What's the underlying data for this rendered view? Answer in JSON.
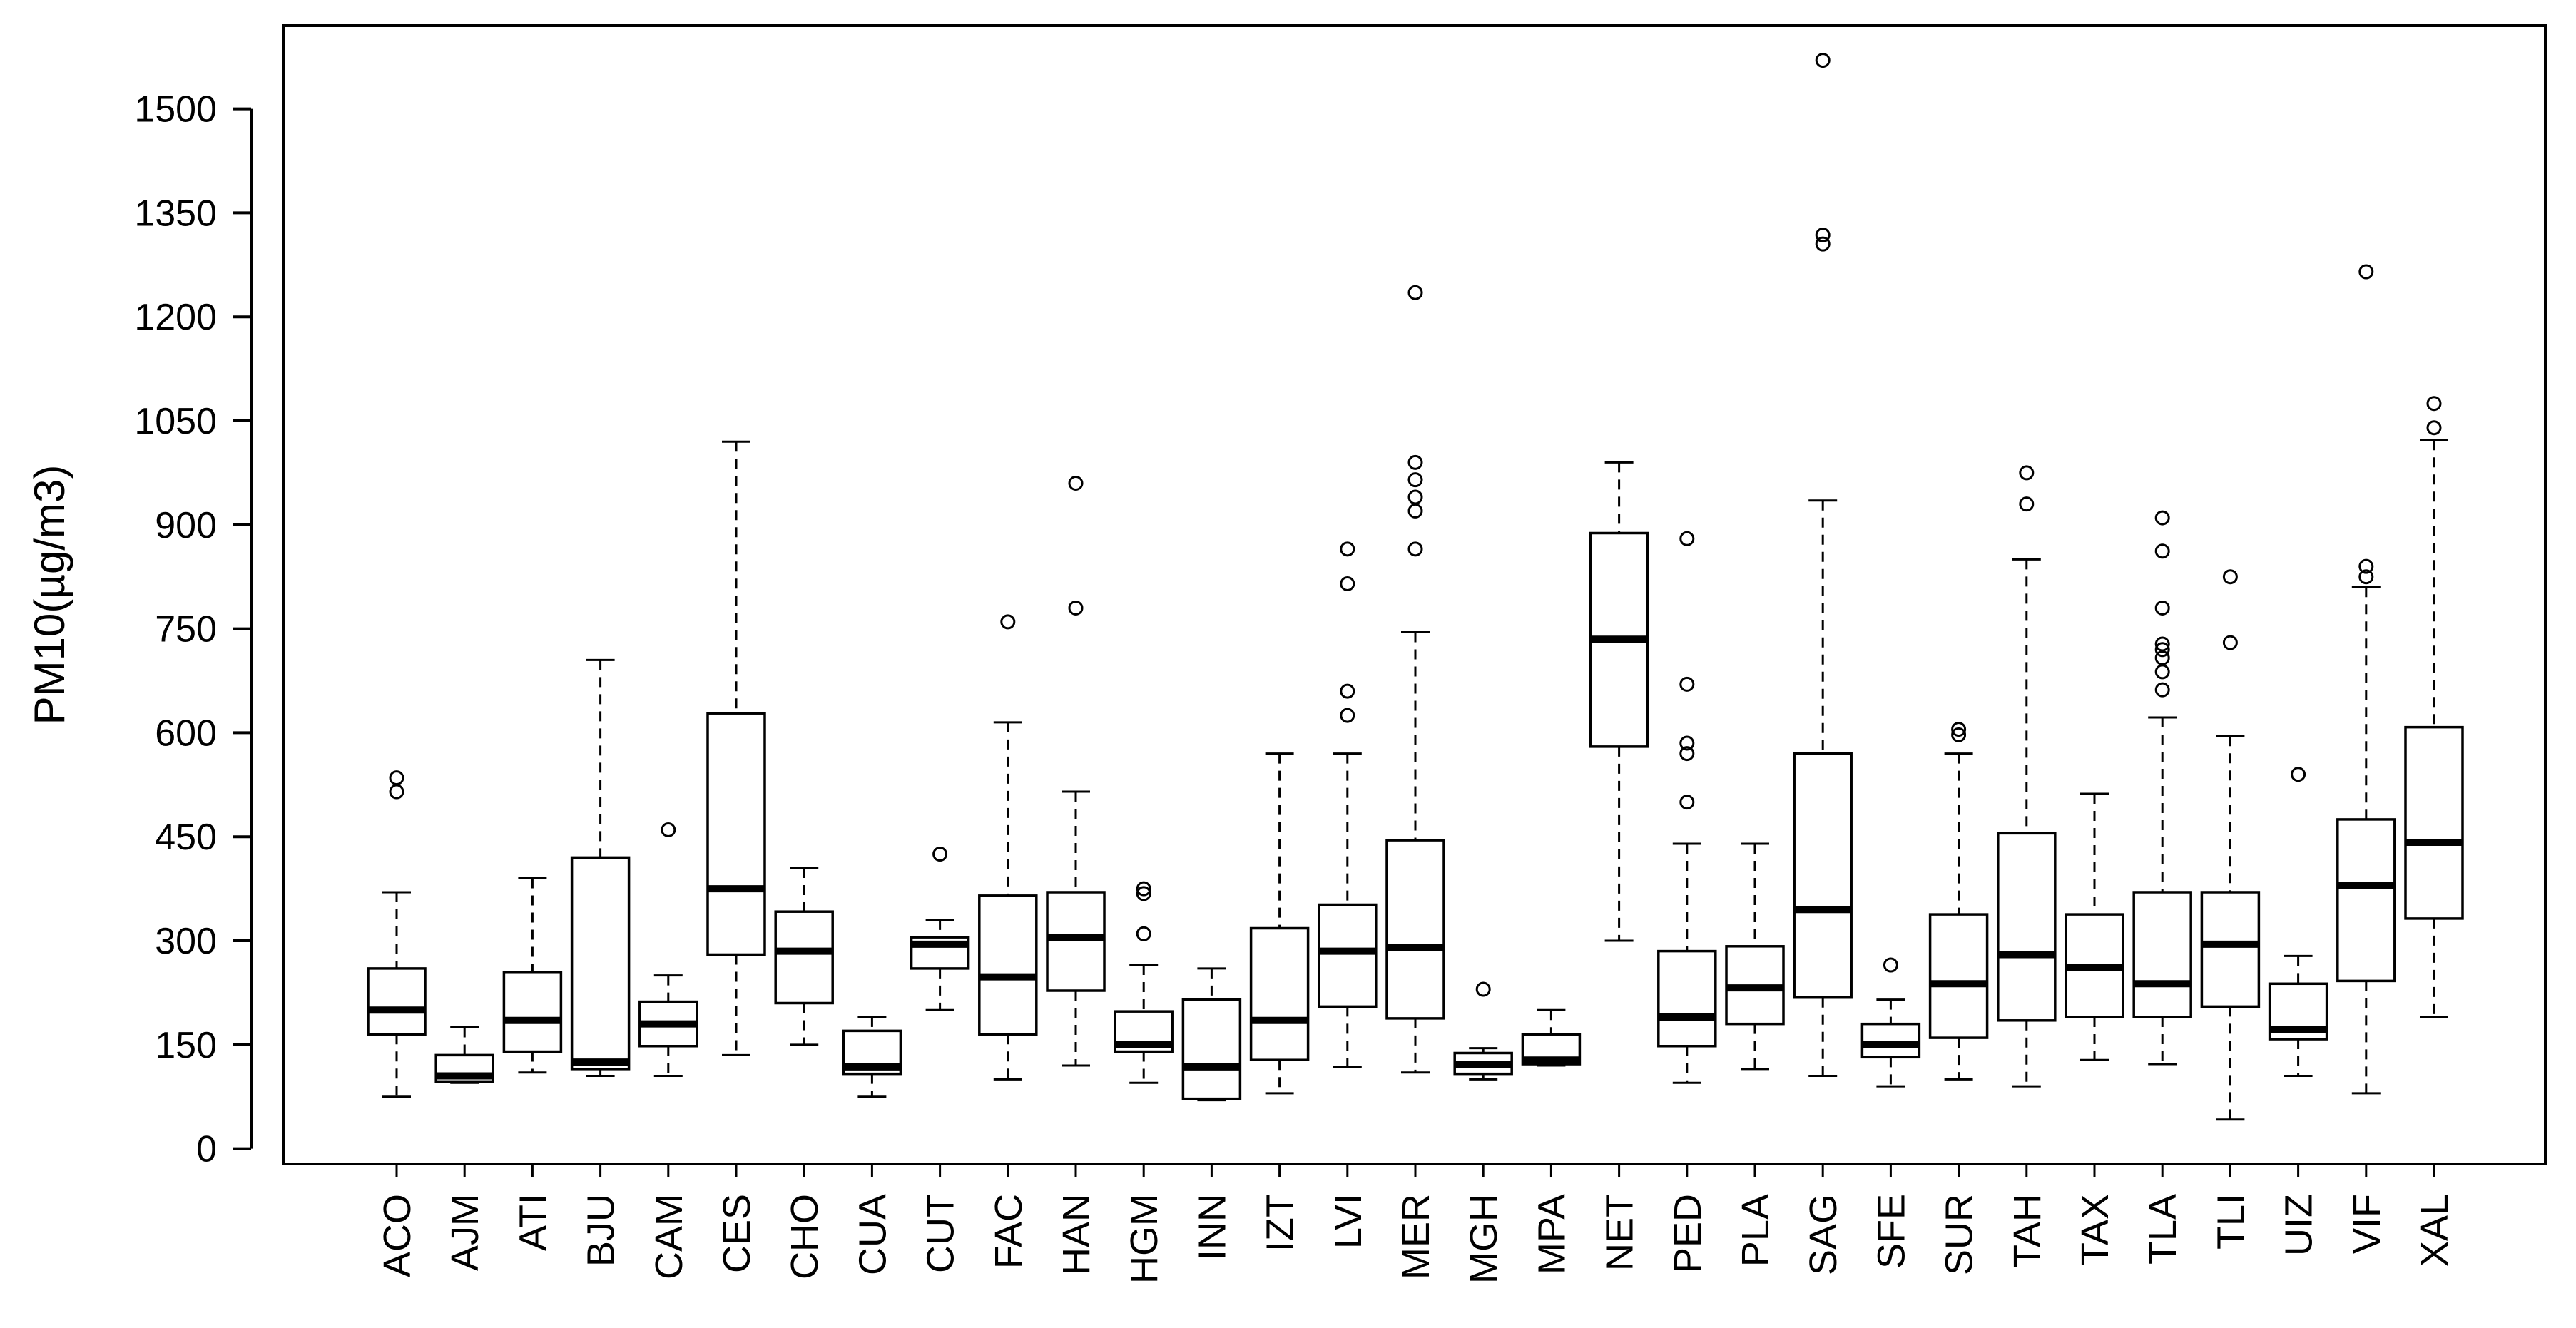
{
  "chart_data": {
    "type": "boxplot",
    "title": "",
    "xlabel": "",
    "ylabel": "PM10(µg/m3)",
    "ylim": [
      -22,
      1620
    ],
    "yticks": [
      0,
      150,
      300,
      450,
      600,
      750,
      900,
      1050,
      1200,
      1350,
      1500
    ],
    "ytick_labels": [
      "0",
      "150",
      "300",
      "450",
      "600",
      "750",
      "900",
      "1050",
      "1200",
      "1350",
      "1500"
    ],
    "grid": false,
    "categories": [
      "ACO",
      "AJM",
      "ATI",
      "BJU",
      "CAM",
      "CES",
      "CHO",
      "CUA",
      "CUT",
      "FAC",
      "HAN",
      "HGM",
      "INN",
      "IZT",
      "LVI",
      "MER",
      "MGH",
      "MPA",
      "NET",
      "PED",
      "PLA",
      "SAG",
      "SFE",
      "SUR",
      "TAH",
      "TAX",
      "TLA",
      "TLI",
      "UIZ",
      "VIF",
      "XAL"
    ],
    "boxes": [
      {
        "name": "ACO",
        "whisker_low": 75,
        "q1": 165,
        "median": 200,
        "q3": 260,
        "whisker_high": 370,
        "outliers": [
          515,
          535
        ]
      },
      {
        "name": "AJM",
        "whisker_low": 95,
        "q1": 97,
        "median": 105,
        "q3": 135,
        "whisker_high": 175,
        "outliers": []
      },
      {
        "name": "ATI",
        "whisker_low": 110,
        "q1": 140,
        "median": 185,
        "q3": 255,
        "whisker_high": 390,
        "outliers": []
      },
      {
        "name": "BJU",
        "whisker_low": 105,
        "q1": 115,
        "median": 125,
        "q3": 420,
        "whisker_high": 705,
        "outliers": []
      },
      {
        "name": "CAM",
        "whisker_low": 105,
        "q1": 148,
        "median": 180,
        "q3": 212,
        "whisker_high": 250,
        "outliers": [
          460
        ]
      },
      {
        "name": "CES",
        "whisker_low": 135,
        "q1": 280,
        "median": 375,
        "q3": 628,
        "whisker_high": 1020,
        "outliers": []
      },
      {
        "name": "CHO",
        "whisker_low": 150,
        "q1": 210,
        "median": 285,
        "q3": 342,
        "whisker_high": 405,
        "outliers": []
      },
      {
        "name": "CUA",
        "whisker_low": 75,
        "q1": 108,
        "median": 118,
        "q3": 170,
        "whisker_high": 190,
        "outliers": []
      },
      {
        "name": "CUT",
        "whisker_low": 200,
        "q1": 260,
        "median": 295,
        "q3": 305,
        "whisker_high": 330,
        "outliers": [
          425
        ]
      },
      {
        "name": "FAC",
        "whisker_low": 100,
        "q1": 165,
        "median": 248,
        "q3": 365,
        "whisker_high": 615,
        "outliers": [
          760
        ]
      },
      {
        "name": "HAN",
        "whisker_low": 120,
        "q1": 228,
        "median": 305,
        "q3": 370,
        "whisker_high": 515,
        "outliers": [
          780,
          960
        ]
      },
      {
        "name": "HGM",
        "whisker_low": 95,
        "q1": 140,
        "median": 150,
        "q3": 198,
        "whisker_high": 265,
        "outliers": [
          310,
          368,
          375
        ]
      },
      {
        "name": "INN",
        "whisker_low": 70,
        "q1": 72,
        "median": 118,
        "q3": 215,
        "whisker_high": 260,
        "outliers": []
      },
      {
        "name": "IZT",
        "whisker_low": 80,
        "q1": 128,
        "median": 185,
        "q3": 318,
        "whisker_high": 570,
        "outliers": []
      },
      {
        "name": "LVI",
        "whisker_low": 118,
        "q1": 205,
        "median": 285,
        "q3": 352,
        "whisker_high": 570,
        "outliers": [
          625,
          660,
          815,
          865
        ]
      },
      {
        "name": "MER",
        "whisker_low": 110,
        "q1": 188,
        "median": 290,
        "q3": 445,
        "whisker_high": 745,
        "outliers": [
          865,
          920,
          940,
          965,
          990,
          1235
        ]
      },
      {
        "name": "MGH",
        "whisker_low": 100,
        "q1": 108,
        "median": 122,
        "q3": 138,
        "whisker_high": 145,
        "outliers": [
          230
        ]
      },
      {
        "name": "MPA",
        "whisker_low": 120,
        "q1": 122,
        "median": 128,
        "q3": 165,
        "whisker_high": 200,
        "outliers": []
      },
      {
        "name": "NET",
        "whisker_low": 300,
        "q1": 580,
        "median": 735,
        "q3": 888,
        "whisker_high": 990,
        "outliers": []
      },
      {
        "name": "PED",
        "whisker_low": 95,
        "q1": 148,
        "median": 190,
        "q3": 285,
        "whisker_high": 440,
        "outliers": [
          500,
          570,
          585,
          670,
          880
        ]
      },
      {
        "name": "PLA",
        "whisker_low": 115,
        "q1": 180,
        "median": 232,
        "q3": 292,
        "whisker_high": 440,
        "outliers": []
      },
      {
        "name": "SAG",
        "whisker_low": 105,
        "q1": 218,
        "median": 345,
        "q3": 570,
        "whisker_high": 935,
        "outliers": [
          1305,
          1318,
          1570
        ]
      },
      {
        "name": "SFE",
        "whisker_low": 90,
        "q1": 132,
        "median": 150,
        "q3": 180,
        "whisker_high": 215,
        "outliers": [
          265
        ]
      },
      {
        "name": "SUR",
        "whisker_low": 100,
        "q1": 160,
        "median": 238,
        "q3": 338,
        "whisker_high": 570,
        "outliers": [
          597,
          605
        ]
      },
      {
        "name": "TAH",
        "whisker_low": 90,
        "q1": 185,
        "median": 280,
        "q3": 455,
        "whisker_high": 850,
        "outliers": [
          930,
          975
        ]
      },
      {
        "name": "TAX",
        "whisker_low": 128,
        "q1": 190,
        "median": 262,
        "q3": 338,
        "whisker_high": 512,
        "outliers": []
      },
      {
        "name": "TLA",
        "whisker_low": 122,
        "q1": 190,
        "median": 238,
        "q3": 370,
        "whisker_high": 622,
        "outliers": [
          662,
          688,
          708,
          720,
          728,
          780,
          862,
          910
        ]
      },
      {
        "name": "TLI",
        "whisker_low": 42,
        "q1": 205,
        "median": 295,
        "q3": 370,
        "whisker_high": 595,
        "outliers": [
          730,
          825
        ]
      },
      {
        "name": "UIZ",
        "whisker_low": 105,
        "q1": 158,
        "median": 172,
        "q3": 238,
        "whisker_high": 278,
        "outliers": [
          540
        ]
      },
      {
        "name": "VIF",
        "whisker_low": 80,
        "q1": 242,
        "median": 380,
        "q3": 475,
        "whisker_high": 810,
        "outliers": [
          825,
          840,
          1265
        ]
      },
      {
        "name": "XAL",
        "whisker_low": 190,
        "q1": 332,
        "median": 442,
        "q3": 608,
        "whisker_high": 1022,
        "outliers": [
          1040,
          1075
        ]
      }
    ]
  }
}
